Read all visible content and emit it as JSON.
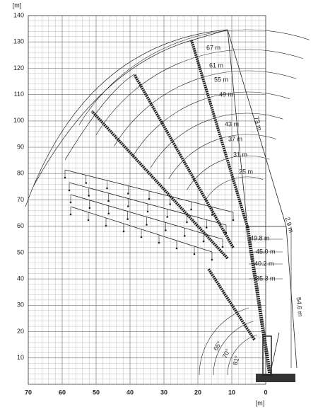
{
  "chart_data": {
    "type": "range",
    "x_label": "[m]",
    "y_label": "[m]",
    "xlim": [
      70,
      0
    ],
    "ylim": [
      0,
      140
    ],
    "xticks": [
      70,
      60,
      50,
      40,
      30,
      20,
      10,
      0
    ],
    "yticks": [
      10,
      20,
      30,
      40,
      50,
      60,
      70,
      80,
      90,
      100,
      110,
      120,
      130,
      140
    ],
    "grid": true,
    "minor_step": 2,
    "annotations": [
      "67 m",
      "61 m",
      "55 m",
      "49 m",
      "43 m",
      "37 m",
      "31 m",
      "25 m",
      "73 m",
      "2.9 m",
      "49.8 m",
      "45.0 m",
      "40.2 m",
      "35.3 m",
      "54.6 m",
      "65°",
      "70°",
      "81°"
    ]
  }
}
